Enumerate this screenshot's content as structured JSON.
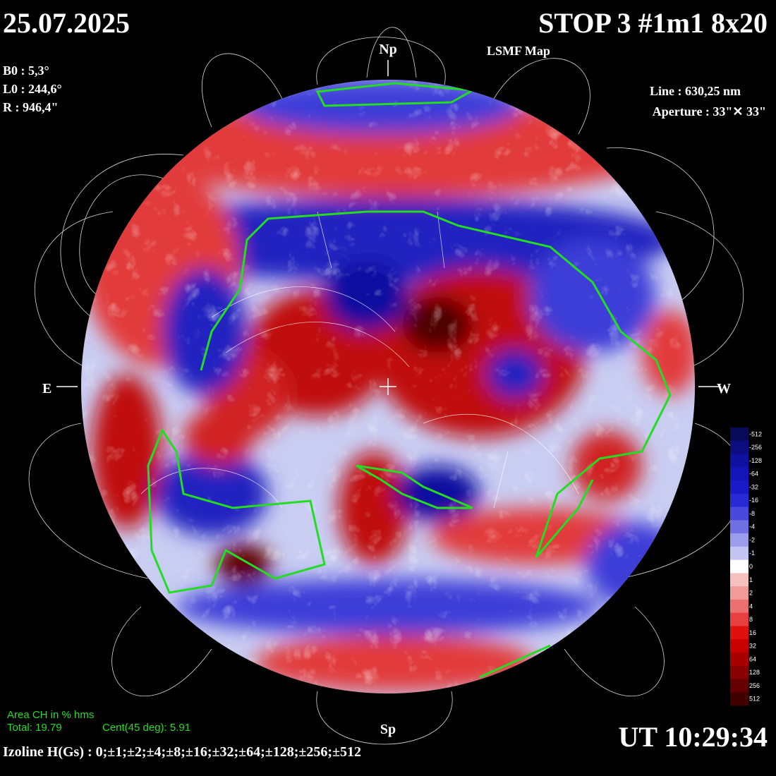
{
  "header": {
    "date": "25.07.2025",
    "title": "STOP 3 #1m1 8x20",
    "subtitle": "LSMF  Map",
    "ut": "UT 10:29:34"
  },
  "params": {
    "b0": "B0 : 5,3°",
    "l0": "L0 : 244,6°",
    "r": "R  : 946,4\"",
    "line": "Line : 630,25 nm",
    "aperture": "Aperture : 33\"✕ 33\""
  },
  "directions": {
    "north": "Np",
    "south": "Sp",
    "east": "E",
    "west": "W"
  },
  "area": {
    "heading": "Area CH in % hms",
    "total": "Total: 19.79",
    "central": "Cent(45 deg): 5.91"
  },
  "isolines": "Izoline H(Gs) : 0;±1;±2;±4;±8;±16;±32;±64;±128;±256;±512",
  "colorbar": {
    "levels": [
      -512,
      -256,
      -128,
      -64,
      -32,
      -16,
      -8,
      -4,
      -2,
      -1,
      0,
      1,
      2,
      4,
      8,
      16,
      32,
      64,
      128,
      256,
      512
    ],
    "colors": [
      "#0a0a5a",
      "#0d0d80",
      "#1010a0",
      "#1414b8",
      "#1a1ac8",
      "#2a2ad4",
      "#4848dc",
      "#7070e4",
      "#9c9cec",
      "#c4c4f4",
      "#ffffff",
      "#f4c0c0",
      "#f09a9a",
      "#ec7070",
      "#e84040",
      "#e01010",
      "#c80000",
      "#a80000",
      "#880000",
      "#640000",
      "#400000"
    ]
  }
}
